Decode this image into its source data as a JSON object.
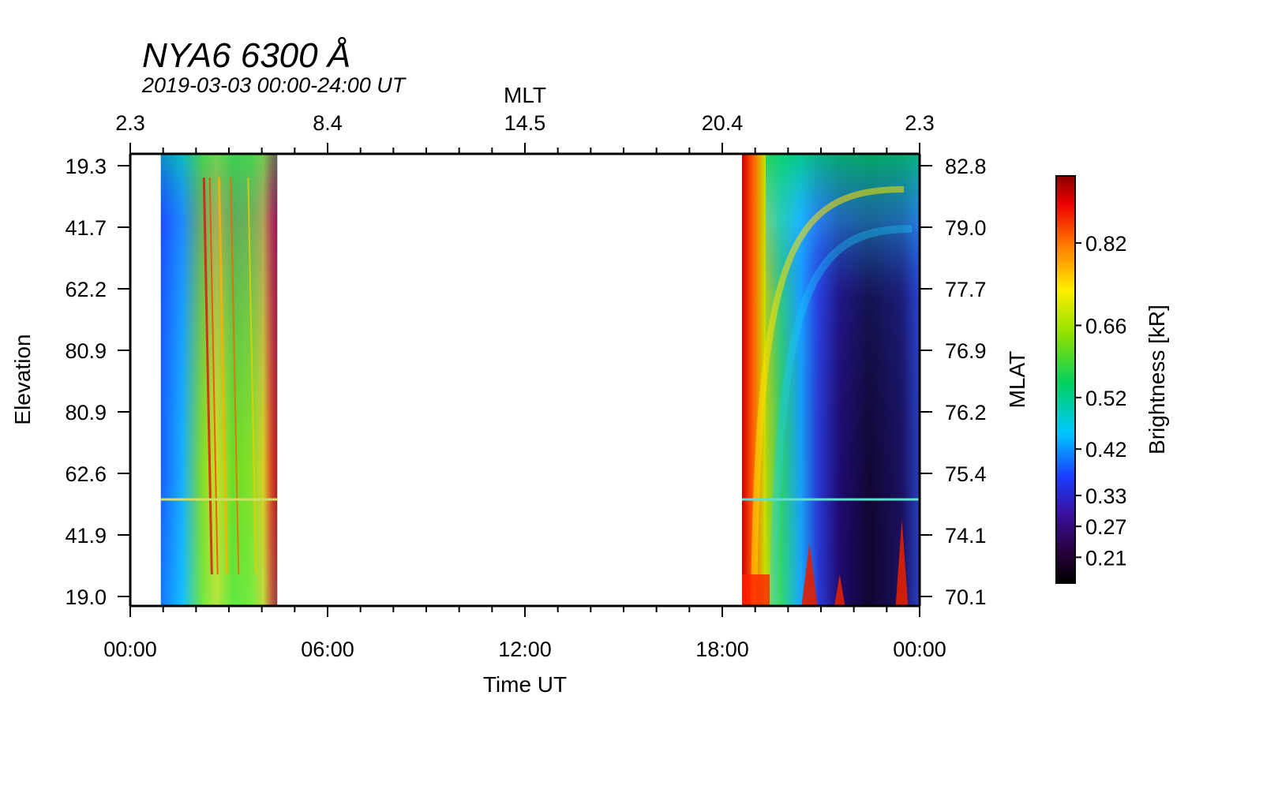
{
  "chart_data": {
    "type": "heatmap",
    "title": "NYA6 6300 Å",
    "subtitle": "2019-03-03 00:00-24:00 UT",
    "xlabel": "Time UT",
    "ylabel_left": "Elevation",
    "ylabel_right": "MLAT",
    "xlabel_top": "MLT",
    "x_range_hours": [
      0,
      24
    ],
    "x_ticks": [
      "00:00",
      "06:00",
      "12:00",
      "18:00",
      "00:00"
    ],
    "x_tick_hours": [
      0,
      6,
      12,
      18,
      24
    ],
    "mlt_ticks": [
      "2.3",
      "8.4",
      "14.5",
      "20.4",
      "2.3"
    ],
    "elevation_ticks": [
      "19.3",
      "41.7",
      "62.2",
      "80.9",
      "80.9",
      "62.6",
      "41.9",
      "19.0"
    ],
    "mlat_ticks": [
      "82.8",
      "79.0",
      "77.7",
      "76.9",
      "76.2",
      "75.4",
      "74.1",
      "70.1"
    ],
    "data_intervals_hours": [
      [
        0.93,
        4.47
      ],
      [
        18.6,
        24.0
      ]
    ],
    "colorbar": {
      "label": "Brightness [kR]",
      "ticks": [
        "0.82",
        "0.66",
        "0.52",
        "0.42",
        "0.33",
        "0.27",
        "0.21"
      ],
      "tick_values": [
        0.82,
        0.66,
        0.52,
        0.42,
        0.33,
        0.27,
        0.21
      ],
      "range": [
        0.16,
        0.95
      ]
    }
  }
}
